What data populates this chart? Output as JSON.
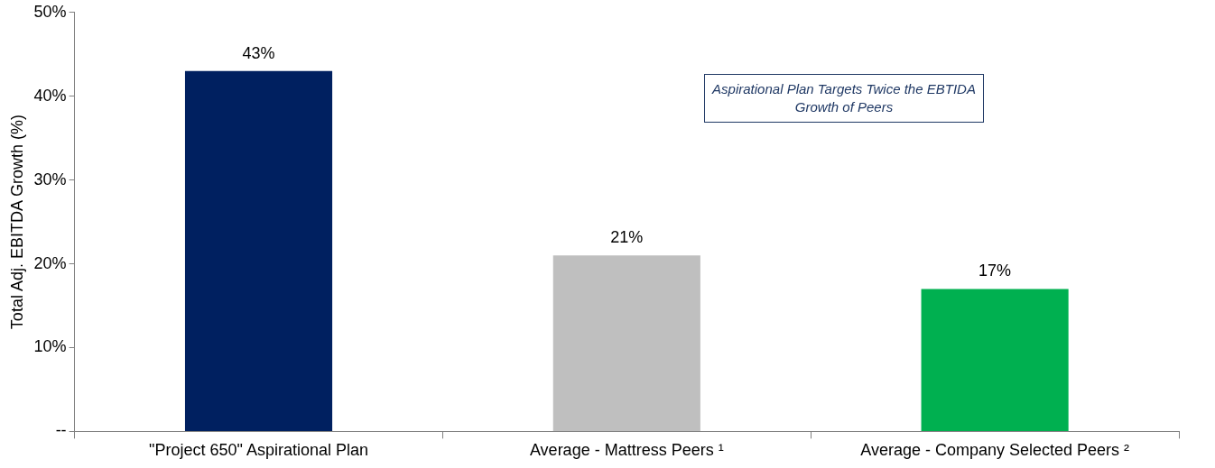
{
  "chart_data": {
    "type": "bar",
    "ylabel": "Total Adj. EBITDA Growth (%)",
    "categories": [
      "\"Project 650\" Aspirational Plan",
      "Average - Mattress Peers ¹",
      "Average - Company Selected Peers ²"
    ],
    "values": [
      43,
      21,
      17
    ],
    "colors": [
      "#002060",
      "#bfbfbf",
      "#00b050"
    ],
    "value_labels": [
      "43%",
      "21%",
      "17%"
    ],
    "ylim": [
      0,
      50
    ],
    "yticks": [
      {
        "value": 0,
        "label": "--"
      },
      {
        "value": 10,
        "label": "10%"
      },
      {
        "value": 20,
        "label": "20%"
      },
      {
        "value": 30,
        "label": "30%"
      },
      {
        "value": 40,
        "label": "40%"
      },
      {
        "value": 50,
        "label": "50%"
      }
    ],
    "grid": false,
    "legend": false,
    "annotations": [
      "Aspirational Plan Targets Twice the EBTIDA Growth of Peers"
    ]
  }
}
